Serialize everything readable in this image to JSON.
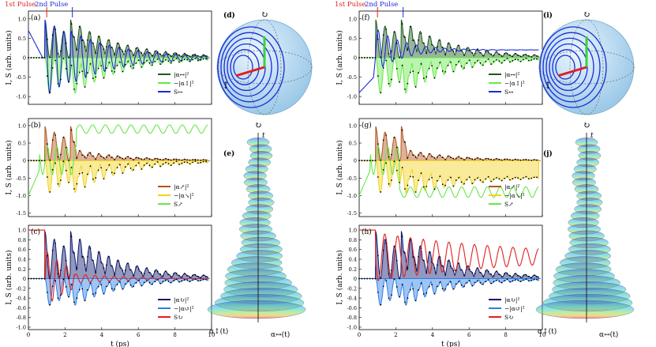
{
  "figure": {
    "axis_y_label": "I, S (arb. units)",
    "axis_x_label": "t (ps)",
    "pulse_1": "1st Pulse",
    "pulse_2": "2nd Pulse",
    "panel_3d_t": "t",
    "panel_3d_a_lin_v": "α↕(t)",
    "panel_3d_a_lin_h": "α↔(t)"
  },
  "panels": [
    {
      "id": "a",
      "label": "(a)",
      "column": "left",
      "row": 0,
      "yticks": [
        "1.0",
        "0.5",
        "0",
        "-0.5",
        "-1.0"
      ],
      "ylim": [
        -1.2,
        1.2
      ],
      "legend": [
        "|α↔|²",
        "−|α↕|²",
        "S↔"
      ],
      "legend_colors": [
        "#1f5a1f",
        "#66e84a",
        "#1a2bd6"
      ],
      "pulses": true
    },
    {
      "id": "b",
      "label": "(b)",
      "column": "left",
      "row": 1,
      "yticks": [
        "1.0",
        "0.5",
        "0",
        "-0.5",
        "-1.0",
        "-1.5"
      ],
      "ylim": [
        -1.6,
        1.2
      ],
      "legend": [
        "|α↗|²",
        "−|α↘|²",
        "S↗"
      ],
      "legend_colors": [
        "#b3541e",
        "#f2d21e",
        "#66e84a"
      ],
      "pulses": false
    },
    {
      "id": "c",
      "label": "(c)",
      "column": "left",
      "row": 2,
      "yticks": [
        "1.0",
        "0.8",
        "0.6",
        "0.4",
        "0.2",
        "0",
        "-0.2",
        "-0.4",
        "-0.6",
        "-0.8",
        "-1.0"
      ],
      "ylim": [
        -1.05,
        1.1
      ],
      "xticks": [
        "0",
        "2",
        "4",
        "6",
        "8",
        "10"
      ],
      "legend": [
        "|α↻|²",
        "−|α↺|²",
        "S↻"
      ],
      "legend_colors": [
        "#101a6e",
        "#2a7fe6",
        "#e02020"
      ],
      "pulses": false
    },
    {
      "id": "f",
      "label": "(f)",
      "column": "right",
      "row": 0,
      "yticks": [
        "1.0",
        "0.5",
        "0",
        "-0.5",
        "-1.0"
      ],
      "ylim": [
        -1.2,
        1.2
      ],
      "legend": [
        "|α↔|²",
        "−|α↕|²",
        "S↔"
      ],
      "legend_colors": [
        "#1f5a1f",
        "#66e84a",
        "#1a2bd6"
      ],
      "pulses": true
    },
    {
      "id": "g",
      "label": "(g)",
      "column": "right",
      "row": 1,
      "yticks": [
        "1.0",
        "0.5",
        "0",
        "-0.5",
        "-1.0",
        "-1.5"
      ],
      "ylim": [
        -1.6,
        1.2
      ],
      "legend": [
        "|α↗|²",
        "−|α↘|²",
        "S↗"
      ],
      "legend_colors": [
        "#b3541e",
        "#f2d21e",
        "#66e84a"
      ],
      "pulses": false
    },
    {
      "id": "h",
      "label": "(h)",
      "column": "right",
      "row": 2,
      "yticks": [
        "1.0",
        "0.8",
        "0.6",
        "0.4",
        "0.2",
        "0",
        "-0.2",
        "-0.4",
        "-0.6",
        "-0.8",
        "-1.0"
      ],
      "ylim": [
        -1.05,
        1.1
      ],
      "xticks": [
        "0",
        "2",
        "4",
        "6",
        "8",
        "10"
      ],
      "legend": [
        "|α↻|²",
        "−|α↺|²",
        "S↻"
      ],
      "legend_colors": [
        "#101a6e",
        "#2a7fe6",
        "#e02020"
      ],
      "pulses": false
    }
  ],
  "insets": [
    {
      "id": "d",
      "label": "(d)",
      "kind": "sphere"
    },
    {
      "id": "e",
      "label": "(e)",
      "kind": "helix"
    },
    {
      "id": "i",
      "label": "(i)",
      "kind": "sphere"
    },
    {
      "id": "j",
      "label": "(j)",
      "kind": "helix"
    }
  ],
  "chart_data": [
    {
      "type": "line",
      "panel": "a",
      "x_range": [
        0,
        10
      ],
      "ylim": [
        -1.2,
        1.2
      ],
      "series": [
        {
          "name": "|α↔|²",
          "decay_ps": 3.0,
          "period_ps": 0.5,
          "peak": 1.0
        },
        {
          "name": "−|α↕|²",
          "decay_ps": 3.0,
          "period_ps": 0.5,
          "peak": -1.0
        },
        {
          "name": "S↔",
          "decay_ps": 3.0,
          "period_ps": 0.5,
          "peak": 1.0
        }
      ]
    },
    {
      "type": "line",
      "panel": "b",
      "x_range": [
        0,
        10
      ],
      "ylim": [
        -1.6,
        1.2
      ],
      "series": [
        {
          "name": "|α↗|²",
          "peak": 1.0
        },
        {
          "name": "−|α↘|²",
          "peak": -1.0
        },
        {
          "name": "S↗",
          "steady": 0.9
        }
      ]
    },
    {
      "type": "line",
      "panel": "c",
      "x_range": [
        0,
        10
      ],
      "ylim": [
        -1.05,
        1.1
      ],
      "series": [
        {
          "name": "|α↻|²",
          "peak": 0.98
        },
        {
          "name": "−|α↺|²",
          "peak": -0.7
        },
        {
          "name": "S↻",
          "initial": 1.0
        }
      ]
    },
    {
      "type": "line",
      "panel": "f",
      "x_range": [
        0,
        10
      ],
      "ylim": [
        -1.2,
        1.2
      ],
      "series": [
        {
          "name": "|α↔|²",
          "peak": 1.0
        },
        {
          "name": "−|α↕|²",
          "peak": -1.0
        },
        {
          "name": "S↔",
          "steady": 0.2
        }
      ]
    },
    {
      "type": "line",
      "panel": "g",
      "x_range": [
        0,
        10
      ],
      "ylim": [
        -1.6,
        1.2
      ],
      "series": [
        {
          "name": "|α↗|²",
          "peak": 1.0
        },
        {
          "name": "−|α↘|²",
          "peak": -1.3
        },
        {
          "name": "S↗",
          "steady": -1.0
        }
      ]
    },
    {
      "type": "line",
      "panel": "h",
      "x_range": [
        0,
        10
      ],
      "ylim": [
        -1.05,
        1.1
      ],
      "series": [
        {
          "name": "|α↻|²",
          "peak": 1.0
        },
        {
          "name": "−|α↺|²",
          "peak": -0.8
        },
        {
          "name": "S↻",
          "initial": 1.0
        }
      ]
    }
  ]
}
